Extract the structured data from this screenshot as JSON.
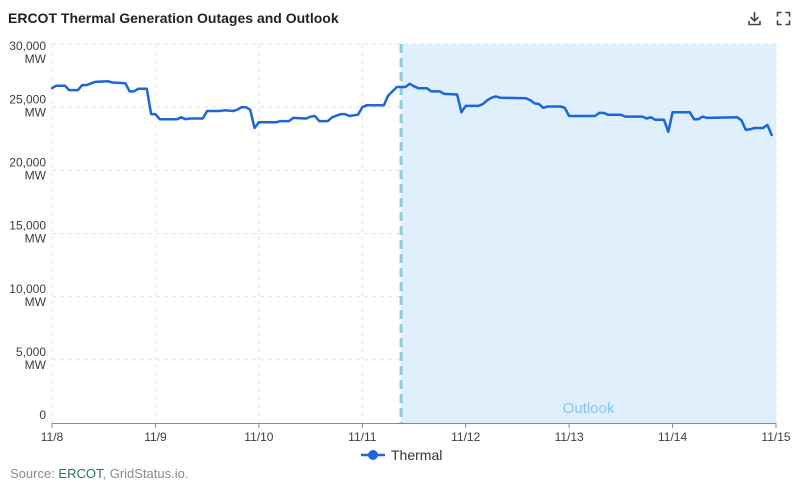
{
  "toolbar": {
    "download_icon": "download-icon",
    "fullscreen_icon": "fullscreen-icon"
  },
  "chart_data": {
    "type": "line",
    "title": "ERCOT Thermal Generation Outages and Outlook",
    "xlim": [
      "11/8",
      "11/15"
    ],
    "ylim": [
      0,
      30000
    ],
    "x_tick_labels": [
      "11/8",
      "11/9",
      "11/10",
      "11/11",
      "11/12",
      "11/13",
      "11/14",
      "11/15"
    ],
    "y_ticks": [
      {
        "value": 0,
        "label": "0"
      },
      {
        "value": 5000,
        "label": "5,000",
        "unit": "MW"
      },
      {
        "value": 10000,
        "label": "10,000",
        "unit": "MW"
      },
      {
        "value": 15000,
        "label": "15,000",
        "unit": "MW"
      },
      {
        "value": 20000,
        "label": "20,000",
        "unit": "MW"
      },
      {
        "value": 25000,
        "label": "25,000",
        "unit": "MW"
      },
      {
        "value": 30000,
        "label": "30,000",
        "unit": "MW"
      }
    ],
    "grid": true,
    "legend_position": "bottom",
    "series": [
      {
        "name": "Thermal",
        "color": "#1b66d8",
        "data": [
          [
            "11/8 00:00",
            26500
          ],
          [
            "11/8 01:00",
            26700
          ],
          [
            "11/8 03:00",
            26700
          ],
          [
            "11/8 04:00",
            26350
          ],
          [
            "11/8 06:00",
            26350
          ],
          [
            "11/8 07:00",
            26750
          ],
          [
            "11/8 08:00",
            26750
          ],
          [
            "11/8 10:00",
            27000
          ],
          [
            "11/8 13:00",
            27050
          ],
          [
            "11/8 14:00",
            26950
          ],
          [
            "11/8 17:00",
            26900
          ],
          [
            "11/8 18:00",
            26250
          ],
          [
            "11/8 19:00",
            26250
          ],
          [
            "11/8 20:00",
            26450
          ],
          [
            "11/8 22:00",
            26450
          ],
          [
            "11/8 23:00",
            24450
          ],
          [
            "11/9 00:00",
            24450
          ],
          [
            "11/9 01:00",
            24050
          ],
          [
            "11/9 05:00",
            24050
          ],
          [
            "11/9 06:00",
            24200
          ],
          [
            "11/9 07:00",
            24050
          ],
          [
            "11/9 08:00",
            24100
          ],
          [
            "11/9 11:00",
            24100
          ],
          [
            "11/9 12:00",
            24700
          ],
          [
            "11/9 15:00",
            24700
          ],
          [
            "11/9 16:00",
            24750
          ],
          [
            "11/9 18:00",
            24700
          ],
          [
            "11/9 19:00",
            24800
          ],
          [
            "11/9 20:00",
            25000
          ],
          [
            "11/9 21:00",
            25000
          ],
          [
            "11/9 22:00",
            24800
          ],
          [
            "11/9 23:00",
            23350
          ],
          [
            "11/10 00:00",
            23800
          ],
          [
            "11/10 04:00",
            23800
          ],
          [
            "11/10 05:00",
            23900
          ],
          [
            "11/10 07:00",
            23900
          ],
          [
            "11/10 08:00",
            24150
          ],
          [
            "11/10 11:00",
            24100
          ],
          [
            "11/10 12:00",
            24250
          ],
          [
            "11/10 13:00",
            24300
          ],
          [
            "11/10 14:00",
            23900
          ],
          [
            "11/10 16:00",
            23900
          ],
          [
            "11/10 17:00",
            24200
          ],
          [
            "11/10 19:00",
            24450
          ],
          [
            "11/10 20:00",
            24450
          ],
          [
            "11/10 21:00",
            24300
          ],
          [
            "11/10 23:00",
            24400
          ],
          [
            "11/11 00:00",
            25000
          ],
          [
            "11/11 01:00",
            25150
          ],
          [
            "11/11 05:00",
            25150
          ],
          [
            "11/11 06:00",
            25900
          ],
          [
            "11/11 08:00",
            26600
          ],
          [
            "11/11 10:00",
            26600
          ],
          [
            "11/11 11:00",
            26850
          ],
          [
            "11/11 12:00",
            26650
          ],
          [
            "11/11 13:00",
            26500
          ],
          [
            "11/11 15:00",
            26500
          ],
          [
            "11/11 16:00",
            26250
          ],
          [
            "11/11 18:00",
            26250
          ],
          [
            "11/11 19:00",
            26050
          ],
          [
            "11/11 22:00",
            26000
          ],
          [
            "11/11 23:00",
            24600
          ],
          [
            "11/12 00:00",
            25100
          ],
          [
            "11/12 03:00",
            25100
          ],
          [
            "11/12 04:00",
            25250
          ],
          [
            "11/12 05:00",
            25550
          ],
          [
            "11/12 06:00",
            25750
          ],
          [
            "11/12 07:00",
            25850
          ],
          [
            "11/12 08:00",
            25750
          ],
          [
            "11/12 14:00",
            25700
          ],
          [
            "11/12 15:00",
            25550
          ],
          [
            "11/12 16:00",
            25300
          ],
          [
            "11/12 17:00",
            25250
          ],
          [
            "11/12 18:00",
            24950
          ],
          [
            "11/12 19:00",
            25050
          ],
          [
            "11/12 22:00",
            25050
          ],
          [
            "11/12 23:00",
            24950
          ],
          [
            "11/13 00:00",
            24300
          ],
          [
            "11/13 06:00",
            24300
          ],
          [
            "11/13 07:00",
            24550
          ],
          [
            "11/13 08:00",
            24550
          ],
          [
            "11/13 09:00",
            24400
          ],
          [
            "11/13 12:00",
            24400
          ],
          [
            "11/13 13:00",
            24250
          ],
          [
            "11/13 17:00",
            24250
          ],
          [
            "11/13 18:00",
            24100
          ],
          [
            "11/13 19:00",
            24200
          ],
          [
            "11/13 20:00",
            24000
          ],
          [
            "11/13 22:00",
            24000
          ],
          [
            "11/13 23:00",
            23050
          ],
          [
            "11/14 00:00",
            24600
          ],
          [
            "11/14 04:00",
            24600
          ],
          [
            "11/14 05:00",
            24050
          ],
          [
            "11/14 06:00",
            24050
          ],
          [
            "11/14 07:00",
            24250
          ],
          [
            "11/14 08:00",
            24150
          ],
          [
            "11/14 15:00",
            24200
          ],
          [
            "11/14 16:00",
            23950
          ],
          [
            "11/14 17:00",
            23200
          ],
          [
            "11/14 18:00",
            23250
          ],
          [
            "11/14 19:00",
            23350
          ],
          [
            "11/14 21:00",
            23350
          ],
          [
            "11/14 22:00",
            23600
          ],
          [
            "11/14 23:00",
            22800
          ]
        ]
      }
    ],
    "outlook": {
      "label": "Outlook",
      "start": "11/11 09:00",
      "end": "11/15 00:00",
      "area_color": "#dcedfb",
      "line_color": "#8ecbe0",
      "label_color": "#86c5ea"
    }
  },
  "source": {
    "prefix": "Source: ",
    "link_text": "ERCOT",
    "suffix": ", GridStatus.io.",
    "link_color": "#1f7a4b"
  }
}
